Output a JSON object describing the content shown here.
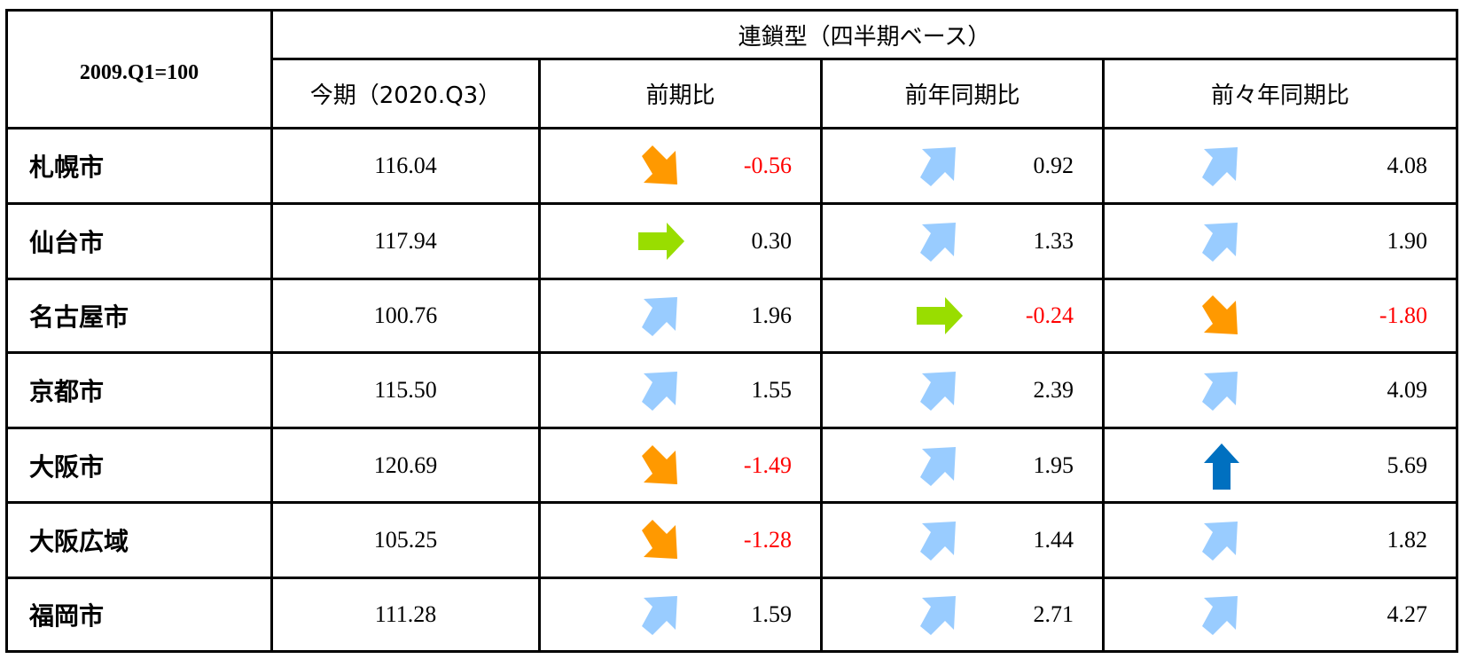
{
  "table": {
    "corner_label": "2009.Q1=100",
    "group_header": "連鎖型（四半期ベース）",
    "columns": [
      "今期（2020.Q3）",
      "前期比",
      "前年同期比",
      "前々年同期比"
    ],
    "rows": [
      {
        "city": "札幌市",
        "current": "116.04",
        "changes": [
          {
            "value": "-0.56",
            "arrow": "down-right-orange-arrow-icon"
          },
          {
            "value": "0.92",
            "arrow": "up-right-lightblue-arrow-icon"
          },
          {
            "value": "4.08",
            "arrow": "up-right-lightblue-arrow-icon"
          }
        ]
      },
      {
        "city": "仙台市",
        "current": "117.94",
        "changes": [
          {
            "value": "0.30",
            "arrow": "right-green-arrow-icon"
          },
          {
            "value": "1.33",
            "arrow": "up-right-lightblue-arrow-icon"
          },
          {
            "value": "1.90",
            "arrow": "up-right-lightblue-arrow-icon"
          }
        ]
      },
      {
        "city": "名古屋市",
        "current": "100.76",
        "changes": [
          {
            "value": "1.96",
            "arrow": "up-right-lightblue-arrow-icon"
          },
          {
            "value": "-0.24",
            "arrow": "right-green-arrow-icon"
          },
          {
            "value": "-1.80",
            "arrow": "down-right-orange-arrow-icon"
          }
        ]
      },
      {
        "city": "京都市",
        "current": "115.50",
        "changes": [
          {
            "value": "1.55",
            "arrow": "up-right-lightblue-arrow-icon"
          },
          {
            "value": "2.39",
            "arrow": "up-right-lightblue-arrow-icon"
          },
          {
            "value": "4.09",
            "arrow": "up-right-lightblue-arrow-icon"
          }
        ]
      },
      {
        "city": "大阪市",
        "current": "120.69",
        "changes": [
          {
            "value": "-1.49",
            "arrow": "down-right-orange-arrow-icon"
          },
          {
            "value": "1.95",
            "arrow": "up-right-lightblue-arrow-icon"
          },
          {
            "value": "5.69",
            "arrow": "up-blue-arrow-icon"
          }
        ]
      },
      {
        "city": "大阪広域",
        "current": "105.25",
        "changes": [
          {
            "value": "-1.28",
            "arrow": "down-right-orange-arrow-icon"
          },
          {
            "value": "1.44",
            "arrow": "up-right-lightblue-arrow-icon"
          },
          {
            "value": "1.82",
            "arrow": "up-right-lightblue-arrow-icon"
          }
        ]
      },
      {
        "city": "福岡市",
        "current": "111.28",
        "changes": [
          {
            "value": "1.59",
            "arrow": "up-right-lightblue-arrow-icon"
          },
          {
            "value": "2.71",
            "arrow": "up-right-lightblue-arrow-icon"
          },
          {
            "value": "4.27",
            "arrow": "up-right-lightblue-arrow-icon"
          }
        ]
      }
    ]
  },
  "colors": {
    "negative_text": "#ff0000",
    "arrow_down_right": "#ff9900",
    "arrow_up_right": "#99ccff",
    "arrow_right": "#99dd00",
    "arrow_up": "#0070c0"
  }
}
